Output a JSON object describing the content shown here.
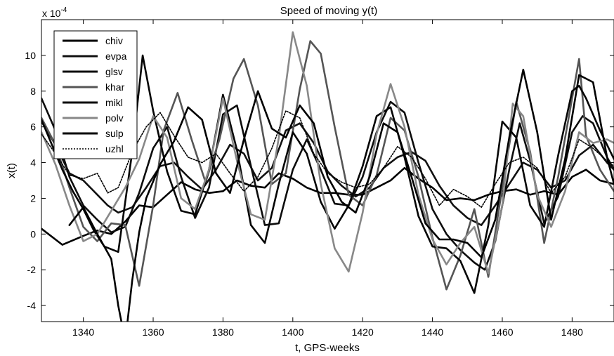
{
  "chart_data": {
    "type": "line",
    "title": "Speed of moving y(t)",
    "xlabel": "t, GPS-weeks",
    "ylabel": "x(t)",
    "scale_label": "x 10",
    "scale_exponent": "-4",
    "xlim": [
      1328,
      1492
    ],
    "ylim": [
      -4.9,
      12.0
    ],
    "xticks": [
      1340,
      1360,
      1380,
      1400,
      1420,
      1440,
      1460,
      1480
    ],
    "yticks": [
      -4,
      -2,
      0,
      2,
      4,
      6,
      8,
      10
    ],
    "grid": false,
    "legend_position": "top-left",
    "series": [
      {
        "name": "chiv",
        "color": "#000000",
        "dash": "",
        "x": [
          1328,
          1334,
          1340,
          1344,
          1348,
          1352,
          1356,
          1360,
          1364,
          1368,
          1372,
          1376,
          1380,
          1384,
          1388,
          1392,
          1396,
          1400,
          1404,
          1408,
          1412,
          1416,
          1420,
          1424,
          1428,
          1432,
          1436,
          1440,
          1444,
          1448,
          1452,
          1456,
          1460,
          1464,
          1468,
          1472,
          1476,
          1480,
          1484,
          1488,
          1492
        ],
        "y": [
          0.3,
          -0.6,
          -0.1,
          0.2,
          0.0,
          0.7,
          1.6,
          1.5,
          2.2,
          2.9,
          2.5,
          2.3,
          2.4,
          3.0,
          2.7,
          2.6,
          3.4,
          3.1,
          2.6,
          2.3,
          2.3,
          2.2,
          2.2,
          2.6,
          3.0,
          3.7,
          3.1,
          2.6,
          1.9,
          2.0,
          1.9,
          2.2,
          2.4,
          2.5,
          2.2,
          2.4,
          2.2,
          3.2,
          3.6,
          3.0,
          2.8
        ]
      },
      {
        "name": "evpa",
        "color": "#111111",
        "dash": "",
        "x": [
          1328,
          1332,
          1336,
          1340,
          1344,
          1347,
          1350,
          1354,
          1358,
          1362,
          1366,
          1370,
          1374,
          1378,
          1382,
          1386,
          1390,
          1394,
          1398,
          1402,
          1406,
          1410,
          1414,
          1418,
          1422,
          1426,
          1430,
          1434,
          1438,
          1442,
          1446,
          1450,
          1454,
          1458,
          1462,
          1466,
          1470,
          1474,
          1478,
          1482,
          1486,
          1490,
          1492
        ],
        "y": [
          6.3,
          5.0,
          3.4,
          3.0,
          2.2,
          1.6,
          1.2,
          1.5,
          2.6,
          3.8,
          4.0,
          3.2,
          2.5,
          3.6,
          5.0,
          4.5,
          3.0,
          3.7,
          5.8,
          6.2,
          5.1,
          3.5,
          2.7,
          2.1,
          2.6,
          3.7,
          4.3,
          4.6,
          4.1,
          2.7,
          1.6,
          0.9,
          0.5,
          1.6,
          2.8,
          4.0,
          3.6,
          2.6,
          3.0,
          4.4,
          5.0,
          4.0,
          3.6
        ]
      },
      {
        "name": "glsv",
        "color": "#0d0d0d",
        "dash": "",
        "x": [
          1328,
          1332,
          1336,
          1340,
          1344,
          1348,
          1352,
          1356,
          1360,
          1364,
          1368,
          1372,
          1376,
          1380,
          1384,
          1388,
          1392,
          1396,
          1400,
          1404,
          1408,
          1412,
          1416,
          1420,
          1424,
          1428,
          1432,
          1436,
          1440,
          1444,
          1448,
          1452,
          1455,
          1458,
          1462,
          1465,
          1468,
          1472,
          1476,
          1480,
          1483,
          1486,
          1490,
          1492
        ],
        "y": [
          7.6,
          5.8,
          3.2,
          1.6,
          0.8,
          0.1,
          0.4,
          2.3,
          4.8,
          6.0,
          3.2,
          0.9,
          2.6,
          6.7,
          7.2,
          3.8,
          0.5,
          0.6,
          3.6,
          5.3,
          3.6,
          1.7,
          1.6,
          3.2,
          5.7,
          7.4,
          6.8,
          4.0,
          1.4,
          0.0,
          -0.9,
          -1.6,
          -2.0,
          -0.4,
          3.6,
          6.2,
          4.1,
          0.6,
          2.1,
          5.7,
          6.6,
          6.2,
          4.3,
          3.6
        ]
      },
      {
        "name": "khar",
        "color": "#555555",
        "dash": "",
        "x": [
          1328,
          1332,
          1336,
          1340,
          1344,
          1348,
          1352,
          1356,
          1360,
          1363,
          1367,
          1371,
          1375,
          1379,
          1383,
          1386,
          1390,
          1394,
          1398,
          1402,
          1405,
          1408,
          1412,
          1416,
          1420,
          1424,
          1428,
          1432,
          1436,
          1440,
          1444,
          1448,
          1452,
          1456,
          1460,
          1464,
          1468,
          1472,
          1476,
          1480,
          1482,
          1484,
          1488,
          1492
        ],
        "y": [
          6.5,
          5.0,
          2.6,
          0.4,
          -0.4,
          0.6,
          0.5,
          -2.9,
          1.6,
          5.8,
          7.9,
          5.3,
          2.9,
          5.3,
          8.7,
          9.8,
          7.2,
          2.8,
          3.4,
          8.1,
          10.8,
          10.1,
          6.0,
          2.2,
          1.6,
          3.3,
          6.5,
          5.8,
          3.2,
          -0.2,
          -3.1,
          -1.2,
          1.4,
          -2.4,
          2.6,
          7.4,
          4.6,
          -0.5,
          3.2,
          7.6,
          9.8,
          5.5,
          3.6,
          2.4
        ]
      },
      {
        "name": "mikl",
        "color": "#050505",
        "dash": "",
        "x": [
          1328,
          1331,
          1334,
          1337,
          1340,
          1343,
          1346,
          1350,
          1354,
          1357,
          1360,
          1364,
          1368,
          1372,
          1376,
          1380,
          1384,
          1388,
          1392,
          1396,
          1400,
          1404,
          1408,
          1412,
          1416,
          1420,
          1424,
          1428,
          1432,
          1436,
          1440,
          1444,
          1448,
          1452,
          1456,
          1460,
          1464,
          1468,
          1472,
          1476,
          1480,
          1482,
          1484,
          1488,
          1492
        ],
        "y": [
          6.4,
          5.0,
          3.6,
          2.4,
          1.4,
          0.2,
          -0.7,
          -1.0,
          4.6,
          10.0,
          6.9,
          3.5,
          1.3,
          1.1,
          3.6,
          7.8,
          4.7,
          0.5,
          -0.5,
          2.8,
          5.7,
          4.5,
          1.8,
          0.3,
          1.6,
          3.8,
          6.6,
          7.1,
          4.3,
          1.0,
          -0.7,
          -0.8,
          -1.5,
          -3.3,
          0.5,
          6.3,
          5.4,
          1.6,
          0.4,
          4.4,
          8.0,
          8.3,
          7.6,
          5.8,
          4.2
        ]
      },
      {
        "name": "polv",
        "color": "#888888",
        "dash": "",
        "x": [
          1328,
          1332,
          1336,
          1340,
          1344,
          1348,
          1352,
          1356,
          1360,
          1364,
          1368,
          1372,
          1376,
          1380,
          1384,
          1388,
          1392,
          1396,
          1400,
          1404,
          1408,
          1412,
          1416,
          1420,
          1424,
          1428,
          1432,
          1436,
          1440,
          1444,
          1448,
          1452,
          1456,
          1460,
          1463,
          1466,
          1470,
          1474,
          1478,
          1482,
          1486,
          1490,
          1492
        ],
        "y": [
          5.7,
          3.9,
          1.6,
          -0.4,
          0.0,
          1.3,
          2.6,
          4.2,
          6.6,
          5.4,
          2.0,
          1.4,
          3.6,
          7.6,
          4.1,
          1.1,
          0.8,
          5.4,
          11.3,
          8.3,
          2.8,
          -0.8,
          -2.1,
          1.2,
          5.6,
          8.4,
          6.0,
          2.2,
          -0.3,
          -1.7,
          -0.5,
          0.4,
          -2.2,
          1.6,
          7.3,
          6.6,
          2.2,
          0.4,
          2.4,
          5.7,
          5.1,
          5.3,
          5.1
        ]
      },
      {
        "name": "sulp",
        "color": "#000000",
        "dash": "",
        "x": [
          1336,
          1340,
          1344,
          1348,
          1350,
          1352,
          1354,
          1356,
          1358,
          1362,
          1366,
          1370,
          1374,
          1378,
          1382,
          1386,
          1390,
          1394,
          1398,
          1402,
          1406,
          1410,
          1414,
          1418,
          1422,
          1426,
          1430,
          1434,
          1438,
          1442,
          1446,
          1450,
          1454,
          1458,
          1462,
          1466,
          1470,
          1474,
          1478,
          1482,
          1486,
          1490,
          1492
        ],
        "y": [
          0.5,
          1.5,
          0.0,
          -1.4,
          -4.0,
          -6.0,
          -2.6,
          0.1,
          2.0,
          3.9,
          5.2,
          7.1,
          6.4,
          3.4,
          2.3,
          5.3,
          8.0,
          5.9,
          5.4,
          7.2,
          6.2,
          3.2,
          1.8,
          1.2,
          3.2,
          6.2,
          5.7,
          3.2,
          0.6,
          -0.3,
          -0.3,
          -0.5,
          -1.3,
          0.8,
          5.4,
          9.2,
          5.7,
          0.8,
          4.2,
          8.9,
          8.5,
          4.3,
          2.8
        ]
      },
      {
        "name": "uzhl",
        "color": "#000000",
        "dash": "2,2",
        "x": [
          1328,
          1332,
          1336,
          1340,
          1344,
          1347,
          1350,
          1354,
          1358,
          1362,
          1366,
          1370,
          1374,
          1378,
          1382,
          1386,
          1390,
          1394,
          1398,
          1402,
          1406,
          1410,
          1414,
          1418,
          1422,
          1426,
          1430,
          1434,
          1438,
          1442,
          1446,
          1450,
          1454,
          1458,
          1462,
          1466,
          1470,
          1474,
          1478,
          1482,
          1486,
          1490,
          1492
        ],
        "y": [
          5.6,
          4.5,
          3.3,
          3.1,
          3.4,
          2.3,
          2.6,
          4.6,
          6.0,
          6.8,
          5.5,
          4.3,
          4.0,
          4.5,
          3.4,
          2.4,
          3.2,
          4.8,
          6.9,
          6.5,
          4.5,
          3.4,
          2.9,
          2.6,
          2.8,
          3.7,
          4.9,
          4.3,
          3.1,
          1.6,
          2.5,
          2.1,
          1.5,
          2.8,
          4.0,
          4.3,
          3.7,
          2.3,
          3.2,
          5.3,
          4.8,
          4.1,
          3.8
        ]
      }
    ]
  }
}
